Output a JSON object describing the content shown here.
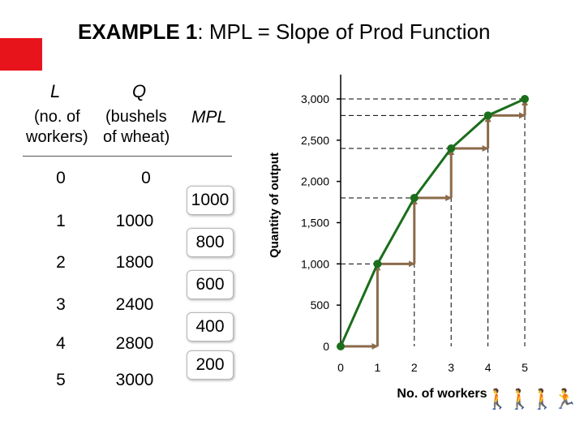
{
  "title": {
    "prefix": "EXAMPLE 1",
    "colon": ":",
    "text": "MPL = Slope of Prod Function"
  },
  "colors": {
    "accent_box": "#e8141c",
    "curve": "#1b6e1b",
    "steps": "#8b6a4a",
    "dashed": "#000000"
  },
  "table": {
    "header_l": "L",
    "header_q": "Q",
    "sub_l_line1": "(no. of",
    "sub_l_line2": "workers)",
    "sub_q_line1": "(bushels",
    "sub_q_line2": "of wheat)",
    "header_mpl": "MPL",
    "rows": [
      {
        "L": "0",
        "Q": "0"
      },
      {
        "L": "1",
        "Q": "1000"
      },
      {
        "L": "2",
        "Q": "1800"
      },
      {
        "L": "3",
        "Q": "2400"
      },
      {
        "L": "4",
        "Q": "2800"
      },
      {
        "L": "5",
        "Q": "3000"
      }
    ],
    "mpl": [
      "1000",
      "800",
      "600",
      "400",
      "200"
    ]
  },
  "chart_data": {
    "type": "line",
    "x": [
      0,
      1,
      2,
      3,
      4,
      5
    ],
    "values": [
      0,
      1000,
      1800,
      2400,
      2800,
      3000
    ],
    "xlabel": "No. of workers",
    "ylabel": "Quantity of output",
    "xticks": [
      "0",
      "1",
      "2",
      "3",
      "4",
      "5"
    ],
    "yticks": [
      "0",
      "500",
      "1,000",
      "1,500",
      "2,000",
      "2,500",
      "3,000"
    ],
    "xlim": [
      0,
      5
    ],
    "ylim": [
      0,
      3000
    ],
    "steps": true,
    "grid": false
  },
  "decoration": {
    "icon": "evolution-figures-icon"
  }
}
